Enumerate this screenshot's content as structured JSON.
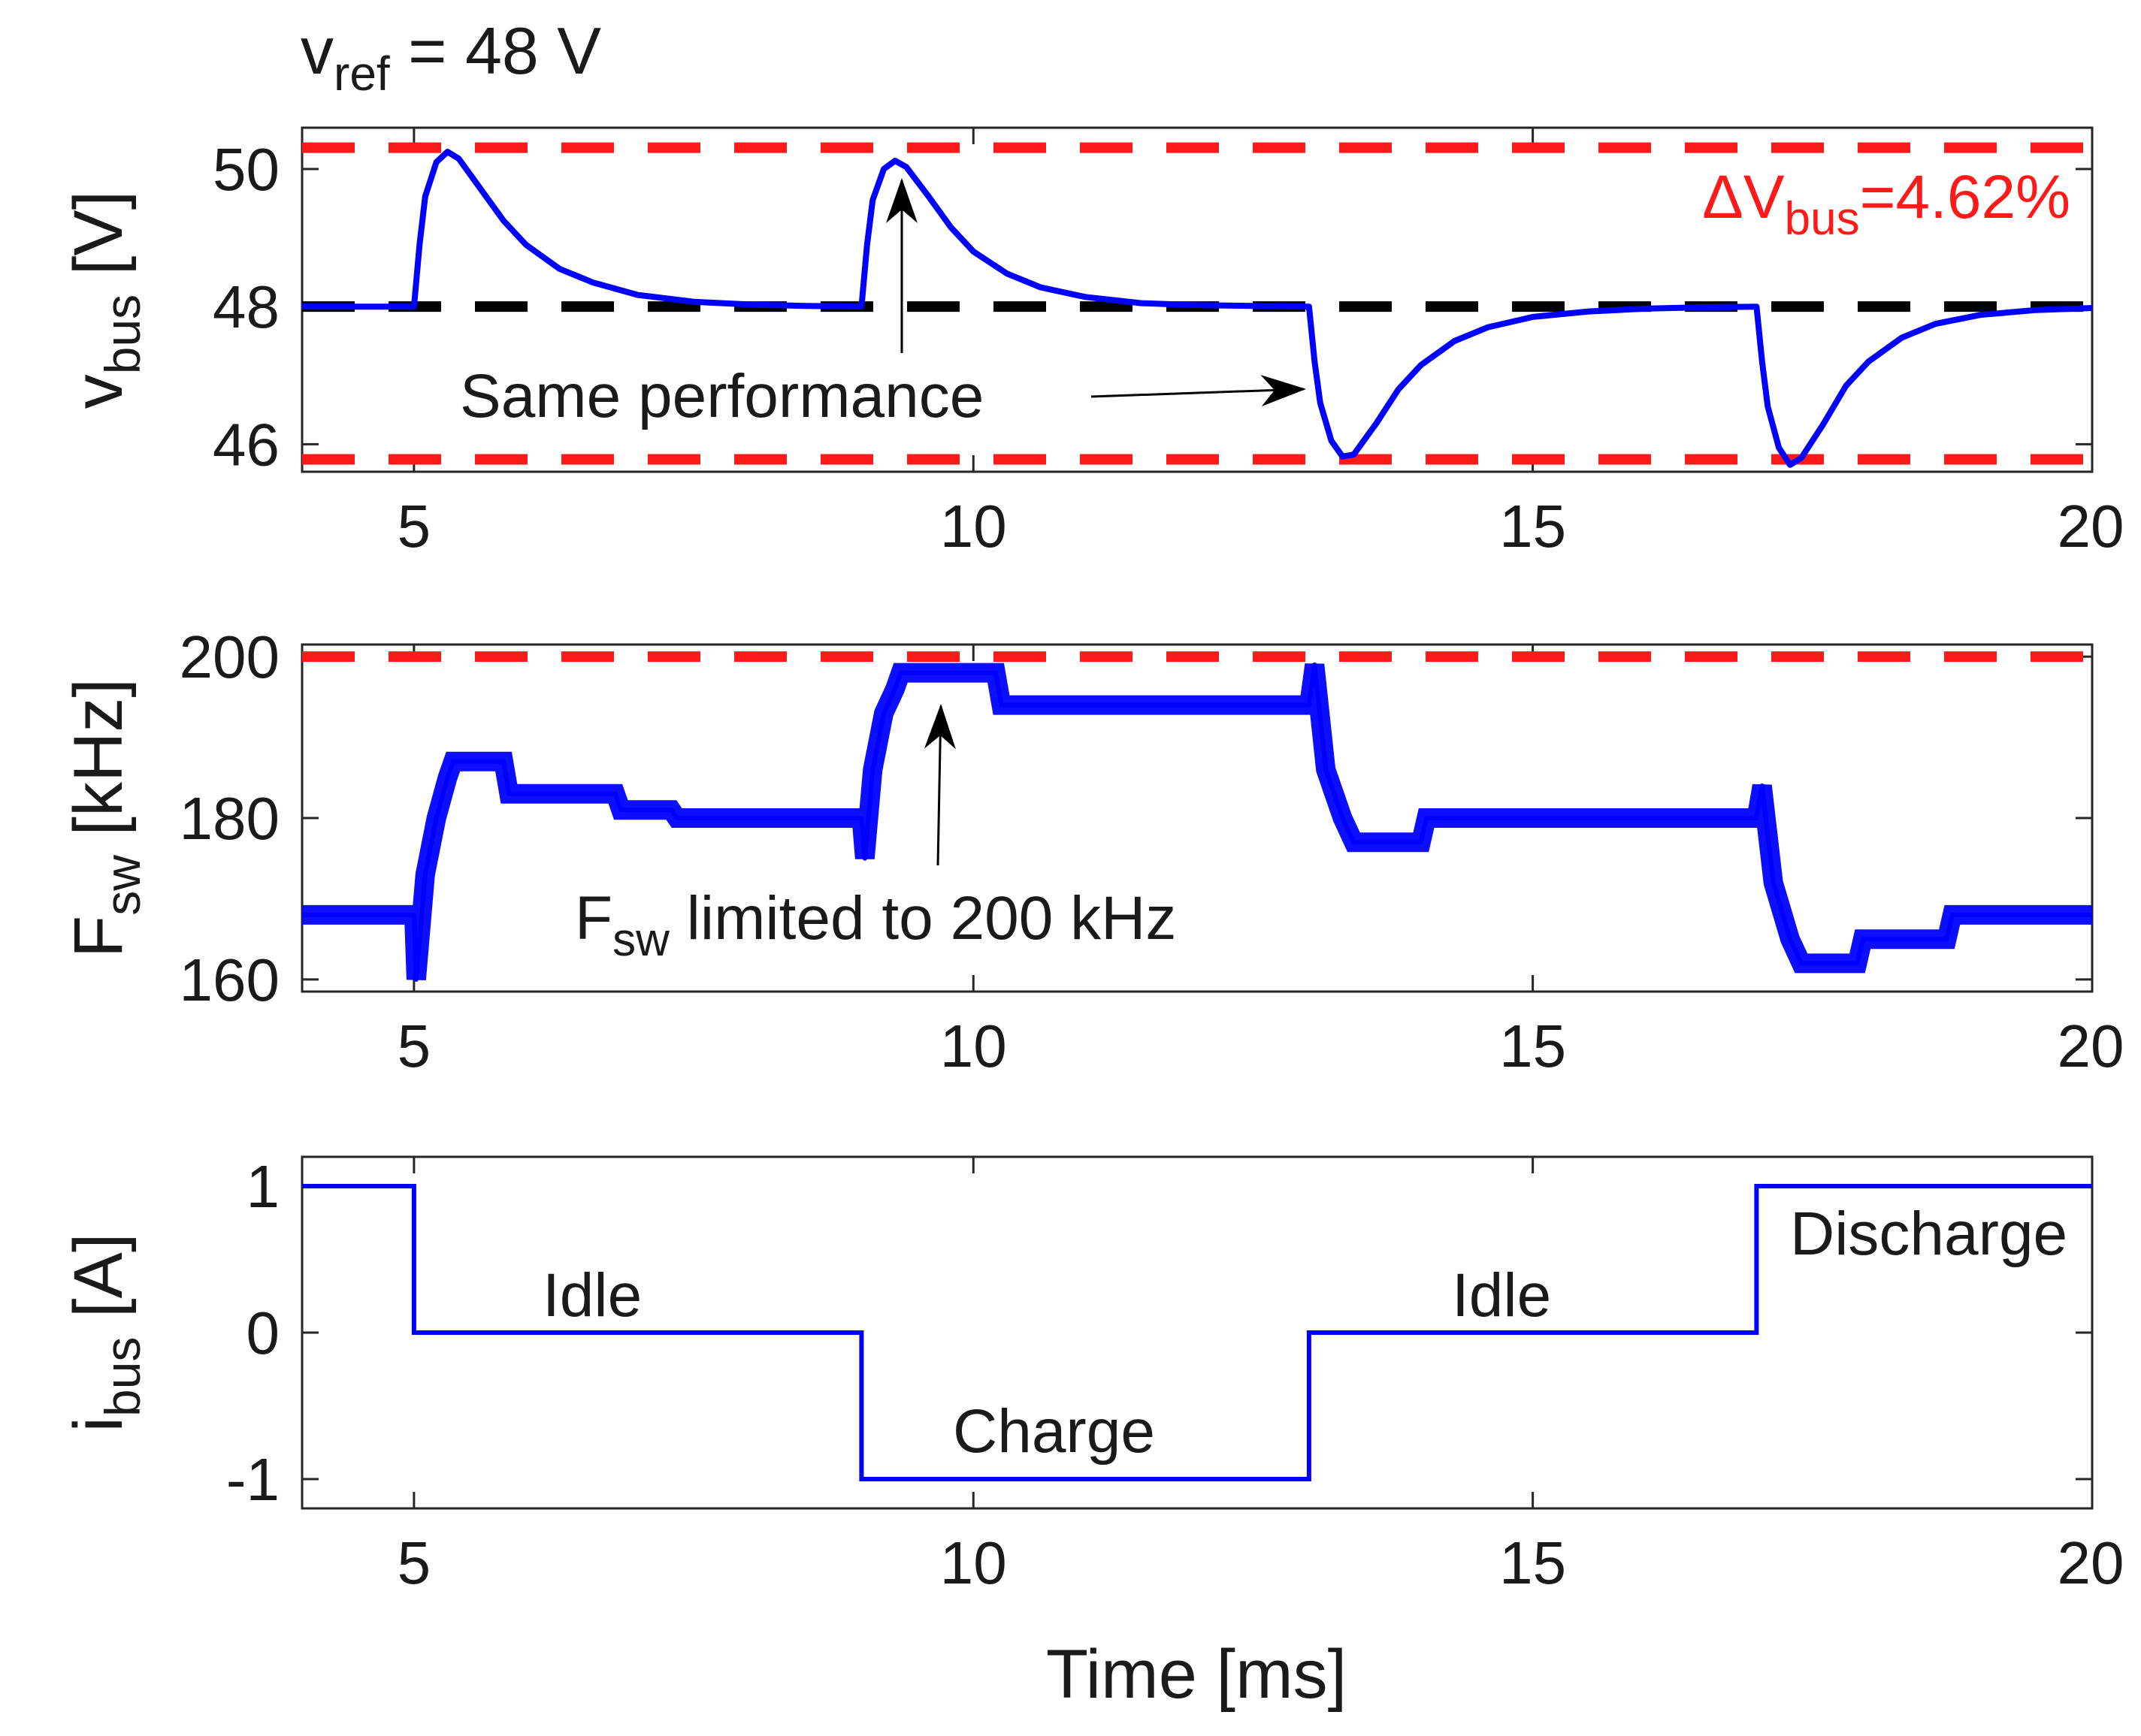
{
  "chart_data": [
    {
      "type": "line",
      "panel": "top",
      "title_prefix": "v",
      "title_sub": "ref",
      "title_suffix": " = 48 V",
      "ylabel_main": "v",
      "ylabel_sub": "bus",
      "ylabel_unit": " [V]",
      "xlim": [
        4,
        20
      ],
      "ylim": [
        45.6,
        50.6
      ],
      "xticks": [
        5,
        10,
        15,
        20
      ],
      "yticks": [
        46,
        48,
        50
      ],
      "reference_lines": [
        {
          "name": "upper-limit",
          "y": 50.31,
          "color": "#ff1a1a",
          "style": "dashed"
        },
        {
          "name": "reference",
          "y": 48,
          "color": "#000000",
          "style": "dashed"
        },
        {
          "name": "lower-limit",
          "y": 45.78,
          "color": "#ff1a1a",
          "style": "dashed"
        }
      ],
      "series": [
        {
          "name": "v_bus",
          "color": "#0000ff",
          "x": [
            4,
            4.8,
            5.0,
            5.05,
            5.1,
            5.2,
            5.3,
            5.4,
            5.6,
            5.8,
            6.0,
            6.3,
            6.6,
            7.0,
            7.5,
            8.0,
            8.5,
            9.0,
            9.05,
            9.1,
            9.2,
            9.3,
            9.4,
            9.6,
            9.8,
            10.0,
            10.3,
            10.6,
            11.0,
            11.5,
            12.0,
            12.5,
            13.0,
            13.05,
            13.1,
            13.2,
            13.3,
            13.4,
            13.6,
            13.8,
            14.0,
            14.3,
            14.6,
            15.0,
            15.5,
            16.0,
            16.5,
            17.0,
            17.05,
            17.1,
            17.2,
            17.3,
            17.4,
            17.6,
            17.8,
            18.0,
            18.3,
            18.6,
            19.0,
            19.5,
            20.0
          ],
          "y": [
            48.0,
            48.0,
            48.0,
            48.9,
            49.6,
            50.1,
            50.25,
            50.15,
            49.7,
            49.25,
            48.9,
            48.55,
            48.35,
            48.17,
            48.07,
            48.03,
            48.01,
            48.0,
            48.9,
            49.55,
            50.0,
            50.12,
            50.03,
            49.6,
            49.15,
            48.8,
            48.48,
            48.28,
            48.14,
            48.05,
            48.02,
            48.01,
            48.0,
            47.2,
            46.6,
            46.05,
            45.82,
            45.85,
            46.3,
            46.8,
            47.15,
            47.5,
            47.7,
            47.85,
            47.93,
            47.97,
            47.99,
            48.0,
            47.2,
            46.55,
            45.95,
            45.7,
            45.8,
            46.3,
            46.85,
            47.2,
            47.55,
            47.75,
            47.88,
            47.95,
            47.98
          ]
        }
      ],
      "annotations": [
        {
          "name": "delta-v-prefix",
          "text": "ΔV"
        },
        {
          "name": "delta-v-sub",
          "text": "bus"
        },
        {
          "name": "delta-v-value",
          "text": "=4.62%"
        },
        {
          "name": "same-performance",
          "text": "Same performance"
        }
      ]
    },
    {
      "type": "line",
      "panel": "middle",
      "ylabel_main": "F",
      "ylabel_sub": "sw",
      "ylabel_unit": " [kHz]",
      "xlim": [
        4,
        20
      ],
      "ylim": [
        158.5,
        201.5
      ],
      "xticks": [
        5,
        10,
        15,
        20
      ],
      "yticks": [
        160,
        180,
        200
      ],
      "reference_lines": [
        {
          "name": "fsw-limit",
          "y": 200,
          "color": "#ff1a1a",
          "style": "dashed"
        }
      ],
      "series": [
        {
          "name": "F_sw",
          "color": "#0000ff",
          "x": [
            4.0,
            5.0,
            5.02,
            5.1,
            5.2,
            5.3,
            5.35,
            5.8,
            5.85,
            6.8,
            6.85,
            7.3,
            7.35,
            9.0,
            9.03,
            9.1,
            9.2,
            9.3,
            9.35,
            9.4,
            10.2,
            10.25,
            13.0,
            13.05,
            13.15,
            13.3,
            13.4,
            14.0,
            14.05,
            17.0,
            17.05,
            17.15,
            17.3,
            17.4,
            17.9,
            17.95,
            18.7,
            18.75,
            20.0
          ],
          "y": [
            168,
            168,
            160,
            173,
            180,
            185,
            187,
            187,
            183,
            183,
            181,
            181,
            180,
            180,
            175,
            186,
            193,
            196,
            198,
            198,
            198,
            194,
            194,
            199,
            186,
            180,
            177,
            177,
            180,
            180,
            184,
            172,
            165,
            162,
            162,
            165,
            165,
            168,
            168
          ]
        }
      ],
      "annotations": [
        {
          "name": "fsw-limited-main",
          "text": "F"
        },
        {
          "name": "fsw-limited-sub",
          "text": "sw"
        },
        {
          "name": "fsw-limited-text",
          "text": " limited to 200 kHz"
        }
      ]
    },
    {
      "type": "line",
      "panel": "bottom",
      "ylabel_main": "i",
      "ylabel_sub": "bus",
      "ylabel_unit": " [A]",
      "xlabel": "Time [ms]",
      "xlim": [
        4,
        20
      ],
      "ylim": [
        -1.2,
        1.2
      ],
      "xticks": [
        5,
        10,
        15,
        20
      ],
      "yticks": [
        -1,
        0,
        1
      ],
      "series": [
        {
          "name": "i_bus",
          "color": "#0000ff",
          "x": [
            4,
            5,
            5,
            9,
            9,
            13,
            13,
            17,
            17,
            20
          ],
          "y": [
            1,
            1,
            0,
            0,
            -1,
            -1,
            0,
            0,
            1,
            1
          ]
        }
      ],
      "annotations": [
        {
          "name": "idle-1",
          "text": "Idle"
        },
        {
          "name": "charge",
          "text": "Charge"
        },
        {
          "name": "idle-2",
          "text": "Idle"
        },
        {
          "name": "discharge",
          "text": "Discharge"
        }
      ]
    }
  ]
}
